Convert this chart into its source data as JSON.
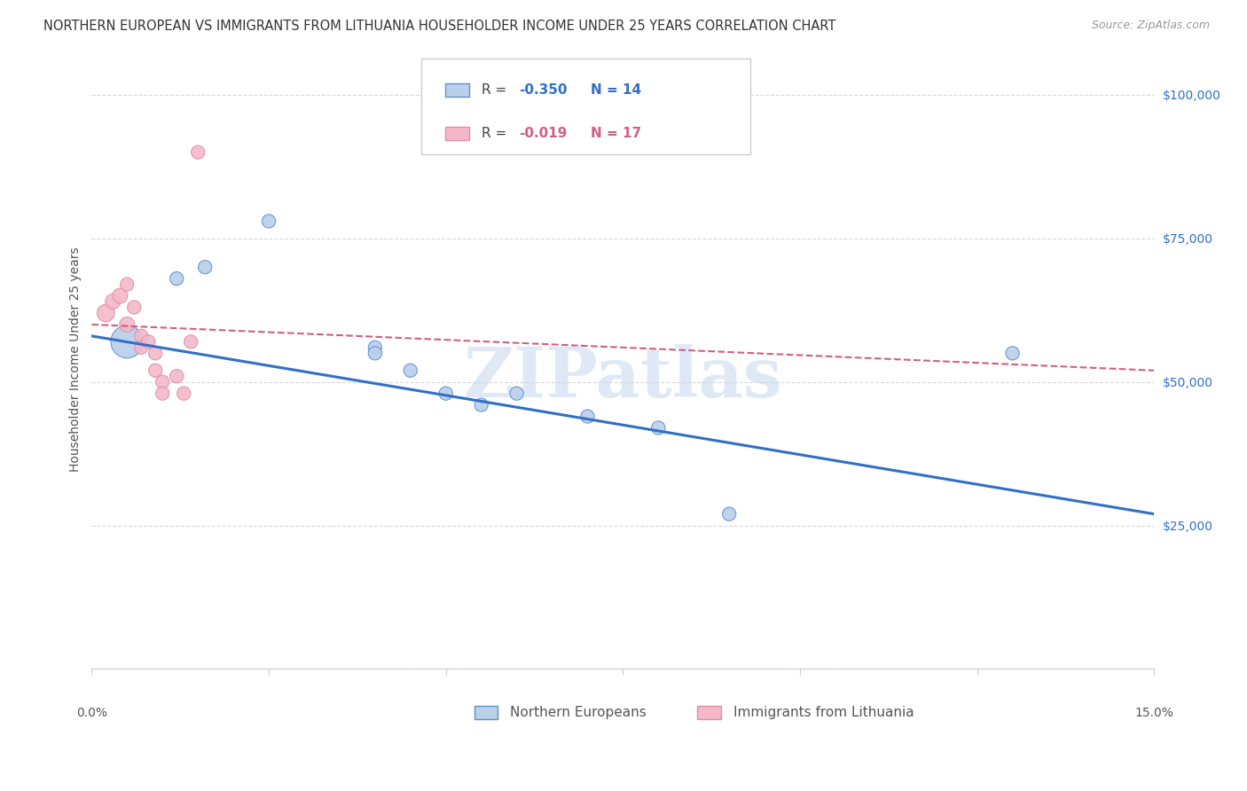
{
  "title": "NORTHERN EUROPEAN VS IMMIGRANTS FROM LITHUANIA HOUSEHOLDER INCOME UNDER 25 YEARS CORRELATION CHART",
  "source": "Source: ZipAtlas.com",
  "ylabel": "Householder Income Under 25 years",
  "watermark": "ZIPatlas",
  "blue_label": "Northern Europeans",
  "pink_label": "Immigrants from Lithuania",
  "blue_R": "-0.350",
  "blue_N": "14",
  "pink_R": "-0.019",
  "pink_N": "17",
  "blue_color": "#b8d0ea",
  "blue_line_color": "#3070c8",
  "blue_edge_color": "#6090d0",
  "pink_color": "#f4b8c8",
  "pink_line_color": "#d06080",
  "pink_edge_color": "#e090a8",
  "blue_points": [
    [
      0.005,
      57000,
      700
    ],
    [
      0.012,
      68000,
      120
    ],
    [
      0.016,
      70000,
      120
    ],
    [
      0.025,
      78000,
      120
    ],
    [
      0.04,
      56000,
      120
    ],
    [
      0.04,
      55000,
      120
    ],
    [
      0.045,
      52000,
      120
    ],
    [
      0.05,
      48000,
      120
    ],
    [
      0.055,
      46000,
      120
    ],
    [
      0.06,
      48000,
      120
    ],
    [
      0.07,
      44000,
      120
    ],
    [
      0.08,
      42000,
      120
    ],
    [
      0.09,
      27000,
      120
    ],
    [
      0.13,
      55000,
      120
    ]
  ],
  "pink_points": [
    [
      0.002,
      62000,
      200
    ],
    [
      0.003,
      64000,
      150
    ],
    [
      0.004,
      65000,
      150
    ],
    [
      0.005,
      60000,
      150
    ],
    [
      0.005,
      67000,
      120
    ],
    [
      0.006,
      63000,
      120
    ],
    [
      0.007,
      58000,
      120
    ],
    [
      0.007,
      56000,
      120
    ],
    [
      0.008,
      57000,
      120
    ],
    [
      0.009,
      55000,
      120
    ],
    [
      0.009,
      52000,
      120
    ],
    [
      0.01,
      50000,
      120
    ],
    [
      0.01,
      48000,
      120
    ],
    [
      0.012,
      51000,
      120
    ],
    [
      0.013,
      48000,
      120
    ],
    [
      0.014,
      57000,
      120
    ],
    [
      0.015,
      90000,
      120
    ]
  ],
  "blue_trend_x": [
    0.0,
    0.15
  ],
  "blue_trend_y": [
    58000,
    27000
  ],
  "pink_trend_x": [
    0.0,
    0.15
  ],
  "pink_trend_y": [
    60000,
    52000
  ],
  "xlim": [
    0.0,
    0.15
  ],
  "ylim": [
    0,
    108000
  ],
  "yticks": [
    0,
    25000,
    50000,
    75000,
    100000
  ],
  "ytick_labels": [
    "",
    "$25,000",
    "$50,000",
    "$75,000",
    "$100,000"
  ],
  "xtick_vals": [
    0.0,
    0.025,
    0.05,
    0.075,
    0.1,
    0.125,
    0.15
  ],
  "grid_color": "#d8d8e0",
  "background_color": "#ffffff",
  "title_fontsize": 10.5,
  "axis_label_fontsize": 10,
  "tick_label_fontsize": 10,
  "legend_fontsize": 11,
  "source_fontsize": 9
}
